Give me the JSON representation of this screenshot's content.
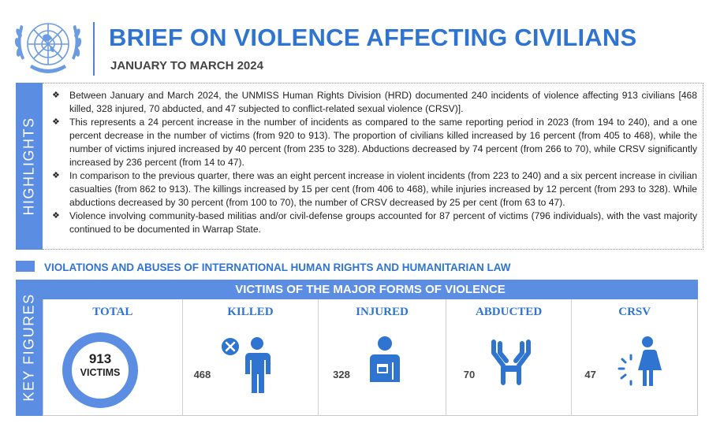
{
  "header": {
    "title": "BRIEF ON VIOLENCE AFFECTING CIVILIANS",
    "subtitle": "JANUARY TO MARCH 2024",
    "logo_icon": "un-emblem-icon"
  },
  "highlights": {
    "label": "HIGHLIGHTS",
    "bullet_symbol": "❖",
    "items": [
      "Between January and March 2024, the UNMISS Human Rights Division (HRD) documented 240 incidents of violence affecting 913 civilians [468 killed, 328 injured, 70 abducted, and 47 subjected to conflict-related sexual violence (CRSV)].",
      "This represents a 24 percent increase in the number of incidents as compared to the same reporting period in 2023 (from 194 to 240), and a one percent decrease in the number of victims (from 920 to 913). The proportion of civilians killed increased by 16 percent (from 405 to 468), while the number of victims injured increased by 40 percent (from 235 to 328). Abductions decreased by 74 percent (from 266 to 70), while CRSV significantly increased by 236 percent (from 14 to 47).",
      "In comparison to the previous quarter, there was an eight percent increase in violent incidents (from 223 to 240) and a six percent increase in civilian casualties (from 862 to 913). The killings increased by 15 per cent (from 406 to 468), while injuries increased by 12 percent (from 293 to 328). While abductions decreased by 30 percent (from 100 to 70), the number of CRSV decreased by 25 per cent (from 63 to 47).",
      "Violence involving community-based militias and/or civil-defense groups accounted for 87 percent of victims (796 individuals), with the vast majority continued to be documented in Warrap State."
    ]
  },
  "section": {
    "title": "VIOLATIONS AND ABUSES OF INTERNATIONAL HUMAN RIGHTS AND HUMANITARIAN LAW"
  },
  "key_figures": {
    "label": "KEY FIGURES",
    "band_title": "VICTIMS OF THE MAJOR FORMS OF VIOLENCE",
    "total": {
      "title": "TOTAL",
      "value": "913",
      "unit": "VICTIMS"
    },
    "categories": [
      {
        "title": "KILLED",
        "value": "468",
        "icon": "killed-person-icon"
      },
      {
        "title": "INJURED",
        "value": "328",
        "icon": "injured-person-icon"
      },
      {
        "title": "ABDUCTED",
        "value": "70",
        "icon": "bound-hands-icon"
      },
      {
        "title": "CRSV",
        "value": "47",
        "icon": "crsv-woman-icon"
      }
    ]
  },
  "colors": {
    "accent": "#2f74d0",
    "sidebar": "#5b8ee2",
    "icon_blue": "#2f74d0"
  }
}
